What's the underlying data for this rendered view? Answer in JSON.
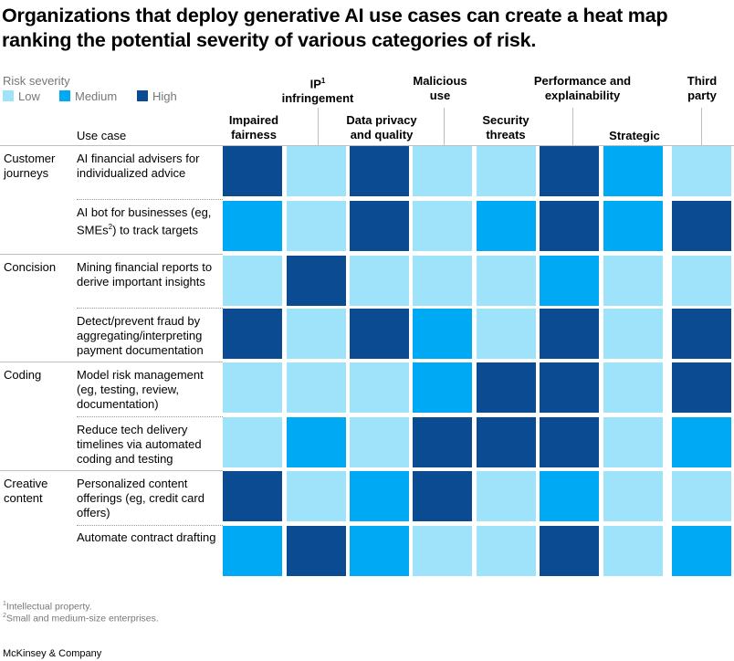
{
  "title": "Organizations that deploy generative AI use cases can create a heat map ranking the potential severity of various categories of risk.",
  "legend": {
    "title": "Risk severity",
    "items": [
      {
        "label": "Low",
        "color": "#9fe3fb"
      },
      {
        "label": "Medium",
        "color": "#00a9f4"
      },
      {
        "label": "High",
        "color": "#0b4b92"
      }
    ]
  },
  "usecase_header": "Use case",
  "columns": [
    {
      "label": "Impaired fairness"
    },
    {
      "label": "IP",
      "sup": "1",
      "label2": "infringement"
    },
    {
      "label": "Data privacy and quality"
    },
    {
      "label": "Malicious use"
    },
    {
      "label": "Security threats"
    },
    {
      "label": "Performance and explainability"
    },
    {
      "label": "Strategic"
    },
    {
      "label": "Third party"
    }
  ],
  "chart_data": {
    "type": "heatmap",
    "title": "Organizations that deploy generative AI use cases can create a heat map ranking the potential severity of various categories of risk.",
    "scale": [
      "Low",
      "Medium",
      "High"
    ],
    "x": [
      "Impaired fairness",
      "IP infringement",
      "Data privacy and quality",
      "Malicious use",
      "Security threats",
      "Performance and explainability",
      "Strategic",
      "Third party"
    ],
    "groups": [
      "Customer journeys",
      "Concision",
      "Coding",
      "Creative content"
    ],
    "rows": [
      {
        "group": "Customer journeys",
        "label": "AI financial advisers for individualized advice",
        "values": [
          "High",
          "Low",
          "High",
          "Low",
          "Low",
          "High",
          "Medium",
          "Low"
        ]
      },
      {
        "group": "Customer journeys",
        "label": "AI bot for businesses (eg, SMEs) to track targets",
        "values": [
          "Medium",
          "Low",
          "High",
          "Low",
          "Medium",
          "High",
          "Medium",
          "High"
        ]
      },
      {
        "group": "Concision",
        "label": "Mining financial reports to derive important insights",
        "values": [
          "Low",
          "High",
          "Low",
          "Low",
          "Low",
          "Medium",
          "Low",
          "Low"
        ]
      },
      {
        "group": "Concision",
        "label": "Detect/prevent fraud by aggregating/interpreting payment documentation",
        "values": [
          "High",
          "Low",
          "High",
          "Medium",
          "Low",
          "High",
          "Low",
          "High"
        ]
      },
      {
        "group": "Coding",
        "label": "Model risk management (eg, testing, review, documentation)",
        "values": [
          "Low",
          "Low",
          "Low",
          "Medium",
          "High",
          "High",
          "Low",
          "High"
        ]
      },
      {
        "group": "Coding",
        "label": "Reduce tech delivery timelines via automated coding and testing",
        "values": [
          "Low",
          "Medium",
          "Low",
          "High",
          "High",
          "High",
          "Low",
          "Medium"
        ]
      },
      {
        "group": "Creative content",
        "label": "Personalized content offerings (eg, credit card offers)",
        "values": [
          "High",
          "Low",
          "Medium",
          "High",
          "Low",
          "Medium",
          "Low",
          "Low"
        ]
      },
      {
        "group": "Creative content",
        "label": "Automate contract drafting",
        "values": [
          "Medium",
          "High",
          "Medium",
          "Low",
          "Low",
          "High",
          "Low",
          "Medium"
        ]
      }
    ]
  },
  "categories": [
    {
      "label": "Customer journeys"
    },
    {
      "label": "Concision"
    },
    {
      "label": "Coding"
    },
    {
      "label": "Creative content"
    }
  ],
  "row_labels": [
    {
      "text": "AI financial advisers for individualized advice"
    },
    {
      "pre": "AI bot for businesses (eg, SMEs",
      "sup": "2",
      "post": ") to track targets"
    },
    {
      "text": "Mining financial reports to derive important insights"
    },
    {
      "text": "Detect/prevent fraud by aggregating/interpreting payment documentation"
    },
    {
      "text": "Model risk management (eg, testing, review, documentation)"
    },
    {
      "text": "Reduce tech delivery timelines via automated coding and testing"
    },
    {
      "text": "Personalized content offerings (eg, credit card offers)"
    },
    {
      "text": "Automate contract drafting"
    }
  ],
  "footnotes": [
    {
      "sup": "1",
      "text": "Intellectual property."
    },
    {
      "sup": "2",
      "text": "Small and medium-size enterprises."
    }
  ],
  "source": "McKinsey & Company"
}
